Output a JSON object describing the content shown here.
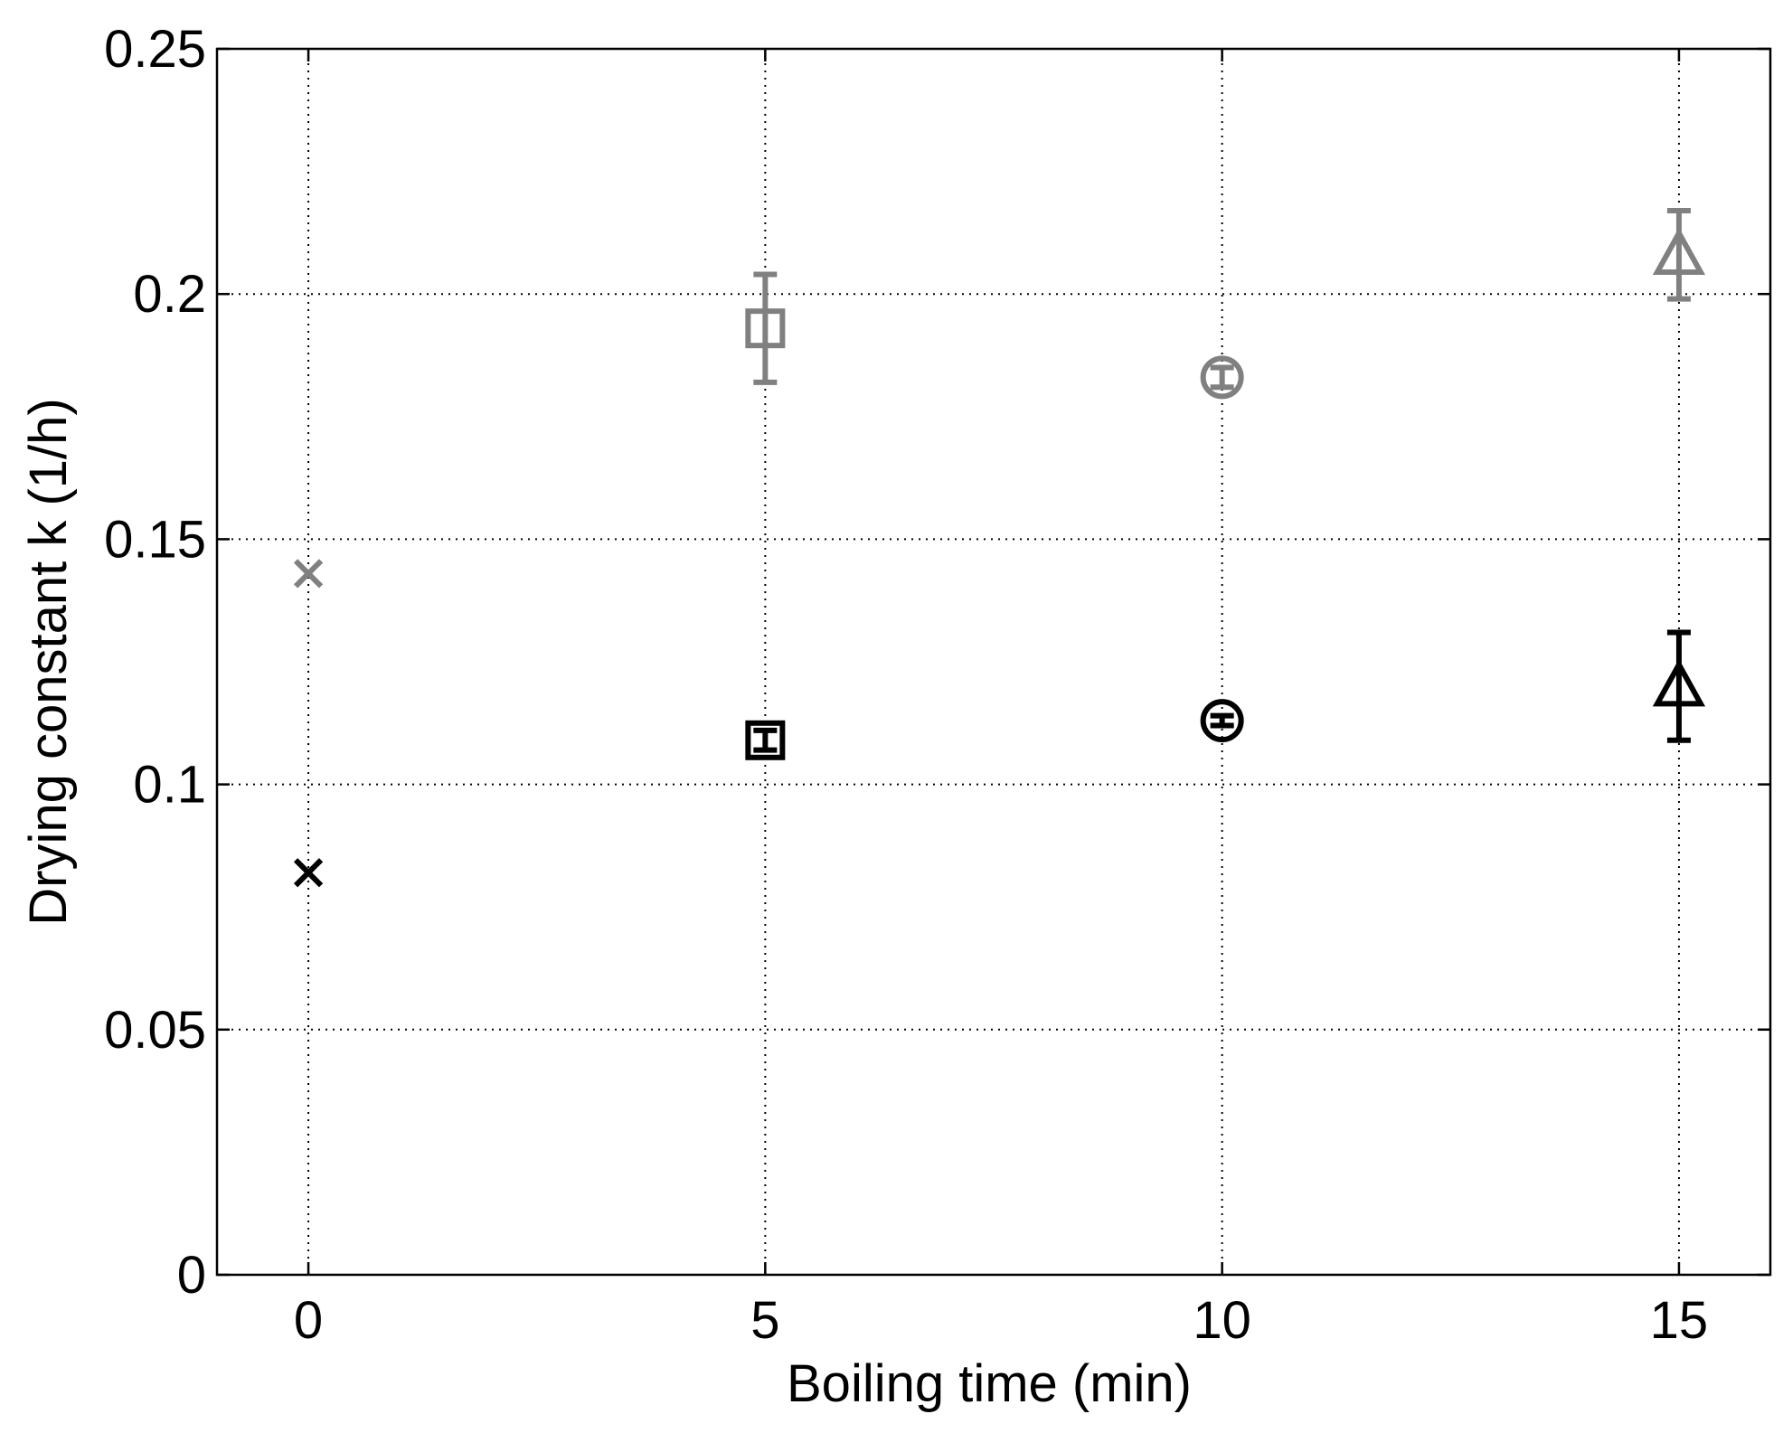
{
  "chart_data": {
    "type": "scatter",
    "title": "",
    "xlabel": "Boiling time (min)",
    "ylabel": "Drying constant k (1/h)",
    "xlim": [
      -1,
      16
    ],
    "ylim": [
      0,
      0.25
    ],
    "xticks": [
      0,
      5,
      10,
      15
    ],
    "yticks": [
      0,
      0.05,
      0.1,
      0.15,
      0.2,
      0.25
    ],
    "xtick_labels": [
      "0",
      "5",
      "10",
      "15"
    ],
    "ytick_labels": [
      "0",
      "0.05",
      "0.1",
      "0.15",
      "0.2",
      "0.25"
    ],
    "grid": true,
    "legend": null,
    "series": [
      {
        "color": "#808080",
        "points": [
          {
            "x": 0,
            "y": 0.143,
            "err": 0,
            "marker": "x"
          },
          {
            "x": 5,
            "y": 0.193,
            "err": 0.011,
            "marker": "square"
          },
          {
            "x": 10,
            "y": 0.183,
            "err": 0.002,
            "marker": "circle"
          },
          {
            "x": 15,
            "y": 0.208,
            "err": 0.009,
            "marker": "triangle"
          }
        ]
      },
      {
        "color": "#000000",
        "points": [
          {
            "x": 0,
            "y": 0.082,
            "err": 0,
            "marker": "x"
          },
          {
            "x": 5,
            "y": 0.109,
            "err": 0.002,
            "marker": "square"
          },
          {
            "x": 10,
            "y": 0.113,
            "err": 0.001,
            "marker": "circle"
          },
          {
            "x": 15,
            "y": 0.12,
            "err": 0.011,
            "marker": "triangle"
          }
        ]
      }
    ]
  }
}
